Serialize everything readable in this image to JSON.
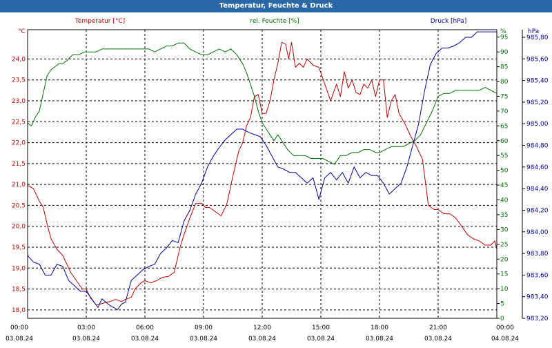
{
  "window": {
    "title": "Temperatur, Feuchte & Druck"
  },
  "chart_data": {
    "type": "line",
    "title": "Temperatur, Feuchte & Druck",
    "colors": {
      "temperature": "#c00000",
      "humidity": "#007000",
      "pressure": "#0000a0",
      "grid": "#000000",
      "frame": "#000000",
      "background": "#ffffff"
    },
    "x_ticks": [
      {
        "h": 0,
        "time": "00:00",
        "date": "03.08.24"
      },
      {
        "h": 3,
        "time": "03:00",
        "date": "03.08.24"
      },
      {
        "h": 6,
        "time": "06:00",
        "date": "03.08.24"
      },
      {
        "h": 9,
        "time": "09:00",
        "date": "03.08.24"
      },
      {
        "h": 12,
        "time": "12:00",
        "date": "03.08.24"
      },
      {
        "h": 15,
        "time": "15:00",
        "date": "03.08.24"
      },
      {
        "h": 18,
        "time": "18:00",
        "date": "03.08.24"
      },
      {
        "h": 21,
        "time": "21:00",
        "date": "03.08.24"
      },
      {
        "h": 24,
        "time": "00:00",
        "date": "04.08.24"
      }
    ],
    "xlim": [
      0,
      24
    ],
    "axes": {
      "temperature": {
        "label": "Temperatur [°C]",
        "unit": "°C",
        "ylim": [
          17.8,
          24.7
        ],
        "ticks": [
          "18,0",
          "18,5",
          "19,0",
          "19,5",
          "20,0",
          "20,5",
          "21,0",
          "21,5",
          "22,0",
          "22,5",
          "23,0",
          "23,5",
          "24,0"
        ]
      },
      "humidity": {
        "label": "rel. Feuchte [%]",
        "unit": "%",
        "ylim": [
          0,
          97.5
        ],
        "ticks": [
          "0",
          "5",
          "10",
          "15",
          "20",
          "25",
          "30",
          "35",
          "40",
          "45",
          "50",
          "55",
          "60",
          "65",
          "70",
          "75",
          "80",
          "85",
          "90",
          "95"
        ]
      },
      "pressure": {
        "label": "Druck [hPa]",
        "unit": "hPa",
        "ylim": [
          983.2,
          985.87
        ],
        "ticks": [
          "983,20",
          "983,40",
          "983,60",
          "983,80",
          "984,00",
          "984,20",
          "984,40",
          "984,60",
          "984,80",
          "985,00",
          "985,20",
          "985,40",
          "985,60",
          "985,80"
        ]
      }
    },
    "series": [
      {
        "name": "Temperatur",
        "axis": "temperature",
        "x": [
          0,
          0.3,
          0.6,
          0.8,
          1.0,
          1.2,
          1.5,
          1.8,
          2.0,
          2.2,
          2.5,
          2.8,
          3.0,
          3.2,
          3.5,
          3.8,
          4.0,
          4.2,
          4.5,
          4.8,
          5.0,
          5.3,
          5.5,
          5.8,
          6.0,
          6.3,
          6.6,
          6.9,
          7.2,
          7.5,
          7.8,
          8.0,
          8.3,
          8.6,
          8.9,
          9.1,
          9.3,
          9.6,
          9.9,
          10.2,
          10.5,
          10.8,
          11.0,
          11.2,
          11.4,
          11.6,
          11.8,
          12.0,
          12.2,
          12.4,
          12.6,
          12.8,
          13.0,
          13.2,
          13.35,
          13.5,
          13.7,
          13.9,
          14.1,
          14.3,
          14.6,
          14.9,
          15.2,
          15.5,
          15.8,
          16.0,
          16.2,
          16.4,
          16.6,
          16.8,
          17.0,
          17.2,
          17.4,
          17.6,
          17.8,
          18.0,
          18.2,
          18.4,
          18.6,
          18.8,
          19.0,
          19.3,
          19.6,
          19.9,
          20.2,
          20.5,
          20.8,
          21.0,
          21.3,
          21.6,
          21.9,
          22.2,
          22.5,
          22.8,
          23.1,
          23.4,
          23.7,
          23.9,
          24.0
        ],
        "values": [
          20.98,
          20.9,
          20.6,
          20.45,
          20.05,
          19.7,
          19.45,
          19.3,
          19.1,
          18.9,
          18.7,
          18.5,
          18.5,
          18.3,
          18.12,
          18.15,
          18.18,
          18.2,
          18.25,
          18.2,
          18.25,
          18.3,
          18.5,
          18.65,
          18.7,
          18.65,
          18.7,
          18.78,
          18.8,
          18.9,
          19.5,
          19.8,
          20.2,
          20.55,
          20.55,
          20.45,
          20.45,
          20.35,
          20.25,
          20.55,
          21.2,
          21.8,
          22.0,
          22.4,
          22.6,
          23.1,
          23.15,
          22.7,
          22.7,
          23.0,
          23.5,
          23.9,
          24.4,
          24.35,
          24.0,
          24.4,
          23.8,
          23.9,
          23.8,
          24.0,
          23.85,
          23.8,
          23.4,
          23.0,
          23.4,
          23.1,
          23.7,
          23.3,
          23.5,
          23.2,
          23.15,
          23.4,
          23.3,
          23.5,
          23.1,
          23.5,
          23.5,
          22.6,
          23.0,
          23.15,
          22.7,
          22.45,
          22.15,
          21.9,
          21.6,
          20.5,
          20.4,
          20.4,
          20.3,
          20.3,
          20.2,
          20.0,
          19.8,
          19.7,
          19.65,
          19.55,
          19.55,
          19.65,
          19.45
        ]
      },
      {
        "name": "rel. Feuchte",
        "axis": "humidity",
        "x": [
          0,
          0.2,
          0.4,
          0.6,
          0.8,
          1.0,
          1.2,
          1.4,
          1.6,
          1.8,
          2.0,
          2.3,
          2.6,
          2.9,
          3.2,
          3.5,
          3.8,
          4.1,
          4.4,
          4.7,
          5.0,
          5.3,
          5.6,
          5.9,
          6.2,
          6.5,
          6.8,
          7.1,
          7.4,
          7.7,
          8.0,
          8.3,
          8.6,
          8.9,
          9.2,
          9.5,
          9.8,
          10.1,
          10.4,
          10.7,
          11.0,
          11.2,
          11.4,
          11.6,
          11.8,
          12.0,
          12.2,
          12.4,
          12.6,
          12.8,
          13.0,
          13.3,
          13.6,
          13.9,
          14.2,
          14.5,
          14.8,
          15.1,
          15.4,
          15.7,
          16.0,
          16.3,
          16.6,
          16.9,
          17.2,
          17.5,
          17.8,
          18.0,
          18.3,
          18.6,
          18.9,
          19.2,
          19.5,
          19.8,
          20.1,
          20.4,
          20.7,
          21.0,
          21.3,
          21.6,
          21.9,
          22.2,
          22.5,
          22.8,
          23.1,
          23.4,
          23.7,
          24.0
        ],
        "values": [
          66,
          65,
          68,
          70,
          76,
          82,
          84,
          85,
          86,
          86,
          87,
          89,
          89,
          90,
          90,
          90,
          91,
          91,
          91,
          91,
          91,
          91,
          91,
          91,
          91,
          90,
          91,
          92,
          92,
          93,
          93,
          91,
          90,
          89,
          89,
          90,
          91,
          90,
          91,
          89,
          86,
          83,
          79,
          75,
          70,
          66,
          64,
          62,
          60,
          62,
          60,
          57,
          55,
          55,
          55,
          54,
          54,
          54,
          53,
          52,
          55,
          55,
          56,
          56,
          57,
          57,
          56,
          56,
          57,
          58,
          58,
          58,
          59,
          60,
          62,
          66,
          70,
          75,
          76,
          76,
          77,
          77,
          77,
          77,
          77,
          78,
          77,
          76
        ]
      },
      {
        "name": "Druck",
        "axis": "pressure",
        "x": [
          0,
          0.3,
          0.6,
          0.9,
          1.2,
          1.5,
          1.8,
          2.1,
          2.4,
          2.7,
          3.0,
          3.2,
          3.4,
          3.6,
          3.8,
          4.0,
          4.2,
          4.4,
          4.6,
          4.8,
          5.0,
          5.3,
          5.6,
          5.9,
          6.2,
          6.5,
          6.8,
          7.1,
          7.4,
          7.7,
          8.0,
          8.3,
          8.6,
          8.9,
          9.2,
          9.5,
          9.8,
          10.1,
          10.4,
          10.7,
          11.0,
          11.3,
          11.6,
          11.9,
          12.2,
          12.5,
          12.8,
          13.1,
          13.4,
          13.7,
          14.0,
          14.3,
          14.6,
          14.9,
          15.2,
          15.5,
          15.8,
          16.1,
          16.4,
          16.7,
          17.0,
          17.3,
          17.6,
          17.9,
          18.2,
          18.5,
          18.8,
          19.1,
          19.4,
          19.7,
          20.0,
          20.3,
          20.6,
          20.9,
          21.2,
          21.5,
          21.8,
          22.1,
          22.4,
          22.7,
          23.0,
          23.3,
          23.6,
          23.9,
          24.0
        ],
        "values": [
          983.78,
          983.72,
          983.7,
          983.6,
          983.6,
          983.7,
          983.68,
          983.55,
          983.5,
          983.45,
          983.45,
          983.4,
          983.35,
          983.3,
          983.38,
          983.35,
          983.32,
          983.3,
          983.28,
          983.33,
          983.35,
          983.55,
          983.6,
          983.65,
          983.68,
          983.7,
          983.8,
          983.85,
          983.92,
          983.9,
          984.1,
          984.2,
          984.35,
          984.45,
          984.6,
          984.7,
          984.78,
          984.85,
          984.9,
          984.95,
          984.95,
          984.92,
          984.9,
          984.88,
          984.8,
          984.7,
          984.6,
          984.58,
          984.55,
          984.55,
          984.5,
          984.45,
          984.5,
          984.3,
          984.5,
          984.55,
          984.48,
          984.55,
          984.45,
          984.6,
          984.5,
          984.55,
          984.52,
          984.52,
          984.45,
          984.35,
          984.4,
          984.45,
          984.6,
          984.8,
          985.0,
          985.3,
          985.55,
          985.65,
          985.7,
          985.7,
          985.72,
          985.75,
          985.8,
          985.8,
          985.85,
          985.85,
          985.85,
          985.85,
          985.85
        ]
      }
    ]
  }
}
